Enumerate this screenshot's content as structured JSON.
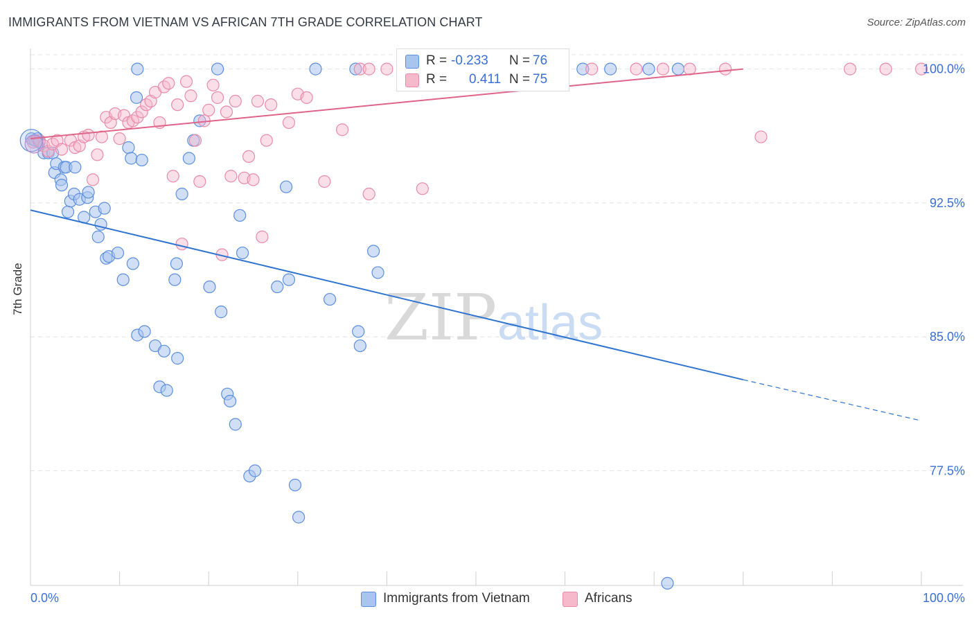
{
  "header": {
    "title": "IMMIGRANTS FROM VIETNAM VS AFRICAN 7TH GRADE CORRELATION CHART",
    "source": "Source: ZipAtlas.com"
  },
  "watermark": {
    "zip": "ZIP",
    "atlas": "atlas"
  },
  "legend_top": {
    "rows": [
      {
        "r_label": "R =",
        "r_value": "-0.233",
        "n_label": "N =",
        "n_value": "76"
      },
      {
        "r_label": "R =",
        "r_value": "0.411",
        "n_label": "N =",
        "n_value": "75"
      }
    ]
  },
  "legend_bottom": {
    "items": [
      "Immigrants from Vietnam",
      "Africans"
    ]
  },
  "colors": {
    "blue_fill": "#a9c4ef",
    "blue_stroke": "#5b8ee0",
    "blue_line": "#2f74d0",
    "pink_fill": "#f6b9cb",
    "pink_stroke": "#e88aa8",
    "pink_line": "#e0638a",
    "tick_text": "#3a6fd8",
    "grid": "#e4e4e4"
  },
  "chart_data": {
    "type": "scatter",
    "title": "IMMIGRANTS FROM VIETNAM VS AFRICAN 7TH GRADE CORRELATION CHART",
    "xlabel": "",
    "ylabel": "7th Grade",
    "xlim": [
      0,
      100
    ],
    "ylim": [
      71,
      100.8
    ],
    "x_tick_labels": [
      "0.0%",
      "100.0%"
    ],
    "y_ticks": [
      77.5,
      85.0,
      92.5,
      100.0
    ],
    "y_tick_labels": [
      "77.5%",
      "85.0%",
      "92.5%",
      "100.0%"
    ],
    "grid": true,
    "legend_position": "top-center",
    "series": [
      {
        "name": "Immigrants from Vietnam",
        "color": "#a9c4ef",
        "trend": {
          "x": [
            0,
            80
          ],
          "y": [
            92.1,
            82.6
          ],
          "dashed_to": [
            100,
            80.3
          ]
        },
        "points": [
          [
            0.1,
            96.1
          ],
          [
            0.5,
            96.0
          ],
          [
            0.8,
            96.1
          ],
          [
            1.0,
            95.9
          ],
          [
            1.5,
            95.3
          ],
          [
            2.0,
            95.3
          ],
          [
            2.5,
            95.3
          ],
          [
            2.7,
            94.2
          ],
          [
            2.9,
            94.7
          ],
          [
            3.4,
            93.8
          ],
          [
            3.5,
            93.5
          ],
          [
            3.8,
            94.5
          ],
          [
            4.0,
            94.5
          ],
          [
            4.2,
            92.0
          ],
          [
            4.5,
            92.6
          ],
          [
            4.9,
            93.0
          ],
          [
            5.0,
            94.5
          ],
          [
            5.5,
            92.7
          ],
          [
            6.0,
            91.7
          ],
          [
            6.4,
            92.8
          ],
          [
            6.5,
            93.1
          ],
          [
            7.3,
            92.0
          ],
          [
            7.6,
            90.6
          ],
          [
            7.9,
            91.3
          ],
          [
            8.3,
            92.2
          ],
          [
            8.5,
            89.4
          ],
          [
            8.8,
            89.5
          ],
          [
            9.8,
            89.7
          ],
          [
            10.4,
            88.2
          ],
          [
            11.0,
            95.6
          ],
          [
            11.3,
            95.0
          ],
          [
            11.5,
            89.1
          ],
          [
            11.9,
            98.4
          ],
          [
            12.0,
            85.1
          ],
          [
            12.5,
            94.9
          ],
          [
            12.8,
            85.3
          ],
          [
            14.0,
            84.5
          ],
          [
            14.5,
            82.2
          ],
          [
            15.0,
            84.2
          ],
          [
            15.3,
            82.0
          ],
          [
            16.2,
            88.2
          ],
          [
            16.4,
            89.1
          ],
          [
            16.5,
            83.8
          ],
          [
            17.0,
            93.0
          ],
          [
            17.8,
            95.0
          ],
          [
            18.3,
            96.0
          ],
          [
            19.0,
            97.1
          ],
          [
            20.1,
            87.8
          ],
          [
            21.4,
            86.4
          ],
          [
            22.1,
            81.8
          ],
          [
            22.4,
            81.4
          ],
          [
            23.0,
            80.1
          ],
          [
            23.5,
            91.8
          ],
          [
            23.8,
            89.7
          ],
          [
            24.6,
            77.2
          ],
          [
            25.2,
            77.5
          ],
          [
            27.7,
            87.8
          ],
          [
            28.7,
            93.4
          ],
          [
            29.0,
            88.2
          ],
          [
            29.7,
            76.7
          ],
          [
            30.1,
            74.9
          ],
          [
            32.0,
            100.0
          ],
          [
            33.6,
            87.1
          ],
          [
            36.5,
            100.0
          ],
          [
            36.8,
            85.3
          ],
          [
            37.0,
            84.5
          ],
          [
            38.5,
            89.8
          ],
          [
            39.0,
            88.6
          ],
          [
            42.7,
            100.0
          ],
          [
            62.0,
            100.0
          ],
          [
            65.1,
            100.0
          ],
          [
            69.4,
            100.0
          ],
          [
            72.7,
            100.0
          ],
          [
            71.5,
            71.2
          ],
          [
            12.0,
            100.0
          ],
          [
            21.0,
            100.0
          ]
        ]
      },
      {
        "name": "Africans",
        "color": "#f6b9cb",
        "trend": {
          "x": [
            0,
            80
          ],
          "y": [
            96.1,
            100.0
          ]
        },
        "points": [
          [
            0.3,
            95.9
          ],
          [
            1.0,
            96.0
          ],
          [
            1.5,
            95.7
          ],
          [
            2.0,
            95.4
          ],
          [
            2.5,
            95.8
          ],
          [
            3.0,
            96.0
          ],
          [
            3.5,
            95.5
          ],
          [
            4.5,
            96.0
          ],
          [
            5.0,
            95.6
          ],
          [
            5.5,
            95.7
          ],
          [
            6.0,
            96.2
          ],
          [
            6.5,
            96.3
          ],
          [
            7.0,
            93.8
          ],
          [
            7.5,
            95.2
          ],
          [
            8.0,
            96.2
          ],
          [
            8.5,
            97.3
          ],
          [
            9.0,
            97.0
          ],
          [
            9.5,
            97.5
          ],
          [
            10.0,
            96.1
          ],
          [
            10.5,
            97.4
          ],
          [
            11.0,
            97.0
          ],
          [
            11.5,
            97.1
          ],
          [
            12.0,
            97.3
          ],
          [
            12.5,
            97.6
          ],
          [
            13.0,
            98.0
          ],
          [
            13.5,
            98.2
          ],
          [
            14.0,
            98.7
          ],
          [
            14.5,
            97.0
          ],
          [
            15.0,
            99.0
          ],
          [
            15.5,
            99.2
          ],
          [
            16.0,
            94.0
          ],
          [
            16.5,
            98.0
          ],
          [
            17.0,
            90.2
          ],
          [
            17.5,
            99.3
          ],
          [
            18.0,
            98.5
          ],
          [
            18.5,
            96.0
          ],
          [
            19.0,
            93.7
          ],
          [
            19.5,
            97.1
          ],
          [
            20.0,
            97.7
          ],
          [
            20.5,
            99.1
          ],
          [
            21.0,
            98.4
          ],
          [
            21.5,
            89.6
          ],
          [
            22.0,
            97.6
          ],
          [
            22.5,
            94.0
          ],
          [
            23.0,
            98.2
          ],
          [
            24.0,
            93.9
          ],
          [
            24.5,
            95.1
          ],
          [
            25.0,
            93.8
          ],
          [
            25.5,
            98.2
          ],
          [
            26.0,
            90.6
          ],
          [
            26.5,
            96.0
          ],
          [
            27.0,
            98.0
          ],
          [
            29.0,
            97.0
          ],
          [
            30.0,
            98.6
          ],
          [
            31.0,
            98.4
          ],
          [
            33.0,
            93.7
          ],
          [
            35.0,
            96.6
          ],
          [
            37.0,
            100.0
          ],
          [
            38.0,
            100.0
          ],
          [
            40.0,
            100.0
          ],
          [
            44.0,
            100.0
          ],
          [
            50.0,
            100.0
          ],
          [
            55.0,
            100.0
          ],
          [
            59.0,
            100.0
          ],
          [
            63.0,
            100.0
          ],
          [
            68.0,
            100.0
          ],
          [
            71.0,
            100.0
          ],
          [
            74.0,
            100.0
          ],
          [
            78.0,
            100.0
          ],
          [
            82.0,
            96.2
          ],
          [
            92.0,
            100.0
          ],
          [
            96.0,
            100.0
          ],
          [
            100.0,
            100.0
          ],
          [
            44.0,
            93.3
          ],
          [
            38.0,
            93.0
          ]
        ]
      }
    ]
  }
}
